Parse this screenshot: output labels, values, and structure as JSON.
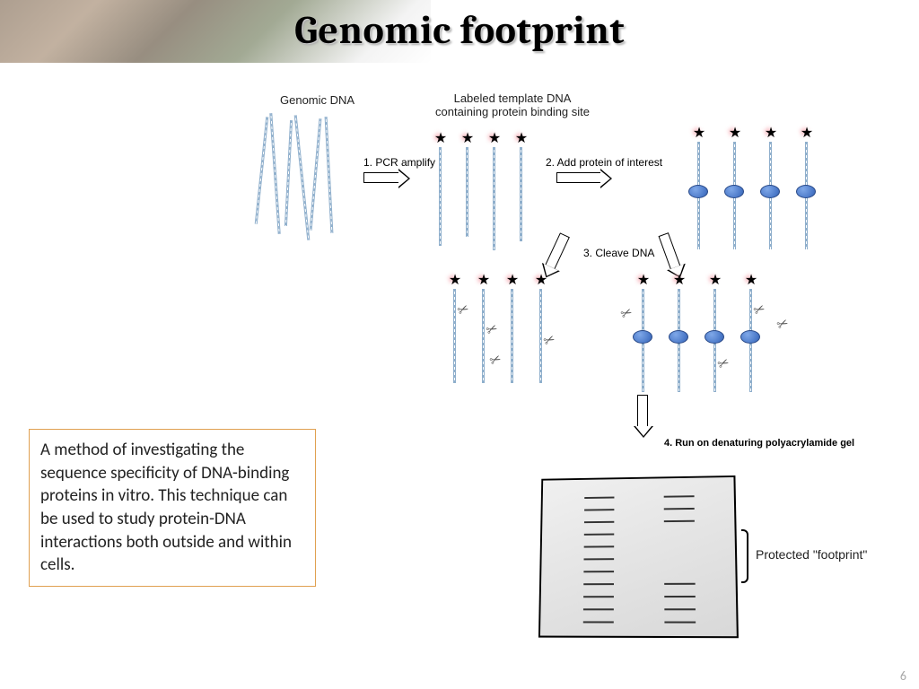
{
  "title": "Genomic footprint",
  "labels": {
    "genomic_dna": "Genomic DNA",
    "labeled_template": "Labeled template DNA\ncontaining protein binding site",
    "protected": "Protected \"footprint\""
  },
  "steps": {
    "s1": "1. PCR amplify",
    "s2": "2. Add protein of interest",
    "s3": "3. Cleave DNA",
    "s4": "4. Run on denaturing polyacrylamide gel"
  },
  "description": "A method of investigating the sequence specificity of DNA-binding proteins in vitro. This technique can be used to study protein-DNA interactions both outside and within cells.",
  "page_number": "6",
  "gel": {
    "lane1_bands_y": [
      20,
      34,
      48,
      62,
      76,
      90,
      104,
      118,
      132,
      146,
      160
    ],
    "lane2_bands_y": [
      20,
      34,
      48,
      118,
      132,
      146,
      160
    ]
  },
  "colors": {
    "strand": "#8fafcc",
    "protein": "#4a78c8",
    "star_glow": "#f6a8b0",
    "box_border": "#e0a050"
  }
}
